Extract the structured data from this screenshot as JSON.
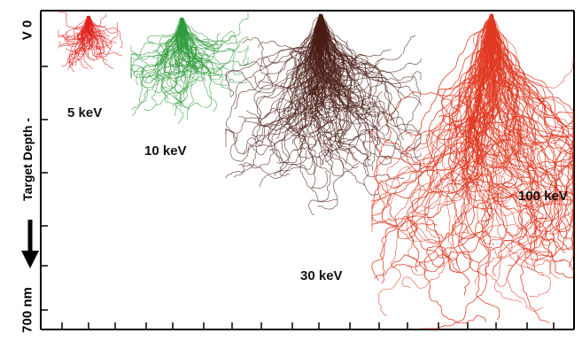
{
  "axis": {
    "top_label": "V 0",
    "side_label": "Target Depth -",
    "bottom_label": "700 nm"
  },
  "simulations": [
    {
      "label": "5 keV",
      "color": "#e0201c"
    },
    {
      "label": "10 keV",
      "color": "#2e9a3a"
    },
    {
      "label": "30 keV",
      "color": "#4a1c16"
    },
    {
      "label": "100 keV",
      "color": "#e03a22"
    }
  ],
  "colors": {
    "frame": "#000000",
    "axis_arrow": "#000000",
    "background": "#ffffff"
  }
}
